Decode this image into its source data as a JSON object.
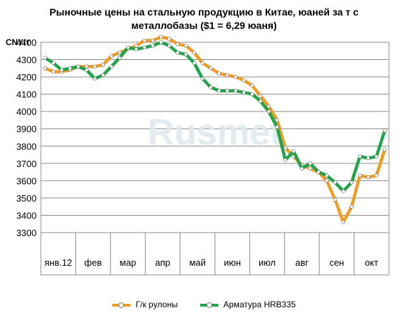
{
  "chart_data": {
    "type": "line",
    "title": "Рыночные цены на стальную продукцию в Китае, юаней за т с металлобазы ($1 = 6,29 юаня)",
    "title_lines": [
      "Рыночные цены на стальную продукцию в Китае, юаней за т с",
      "металлобазы ($1 = 6,29 юаня)"
    ],
    "ylabel": "CNY/т",
    "xlabel": "",
    "ylim": [
      3300,
      4400
    ],
    "yticks": [
      3300,
      3400,
      3500,
      3600,
      3700,
      3800,
      3900,
      4000,
      4100,
      4200,
      4300,
      4400
    ],
    "months": [
      "янв.12",
      "фев",
      "мар",
      "апр",
      "май",
      "июн",
      "июл",
      "авг",
      "сен",
      "окт"
    ],
    "grid": true,
    "legend_position": "bottom",
    "series": [
      {
        "name": "Г/к рулоны",
        "color": "#f39c1f",
        "values": [
          4250,
          4230,
          4230,
          4240,
          4260,
          4260,
          4260,
          4270,
          4320,
          4340,
          4360,
          4380,
          4410,
          4410,
          4430,
          4420,
          4390,
          4380,
          4340,
          4280,
          4250,
          4220,
          4210,
          4200,
          4180,
          4150,
          4090,
          4030,
          3950,
          3790,
          3740,
          3690,
          3670,
          3650,
          3600,
          3490,
          3360,
          3450,
          3630,
          3620,
          3630,
          3780
        ]
      },
      {
        "name": "Арматура HRB335",
        "color": "#1fa64a",
        "values": [
          4310,
          4280,
          4240,
          4250,
          4260,
          4240,
          4190,
          4210,
          4260,
          4310,
          4370,
          4360,
          4370,
          4380,
          4400,
          4380,
          4340,
          4330,
          4280,
          4190,
          4140,
          4120,
          4120,
          4120,
          4110,
          4100,
          4060,
          4000,
          3910,
          3720,
          3770,
          3670,
          3700,
          3650,
          3630,
          3590,
          3540,
          3590,
          3740,
          3730,
          3740,
          3890
        ]
      }
    ]
  },
  "watermark": "Rusmet"
}
